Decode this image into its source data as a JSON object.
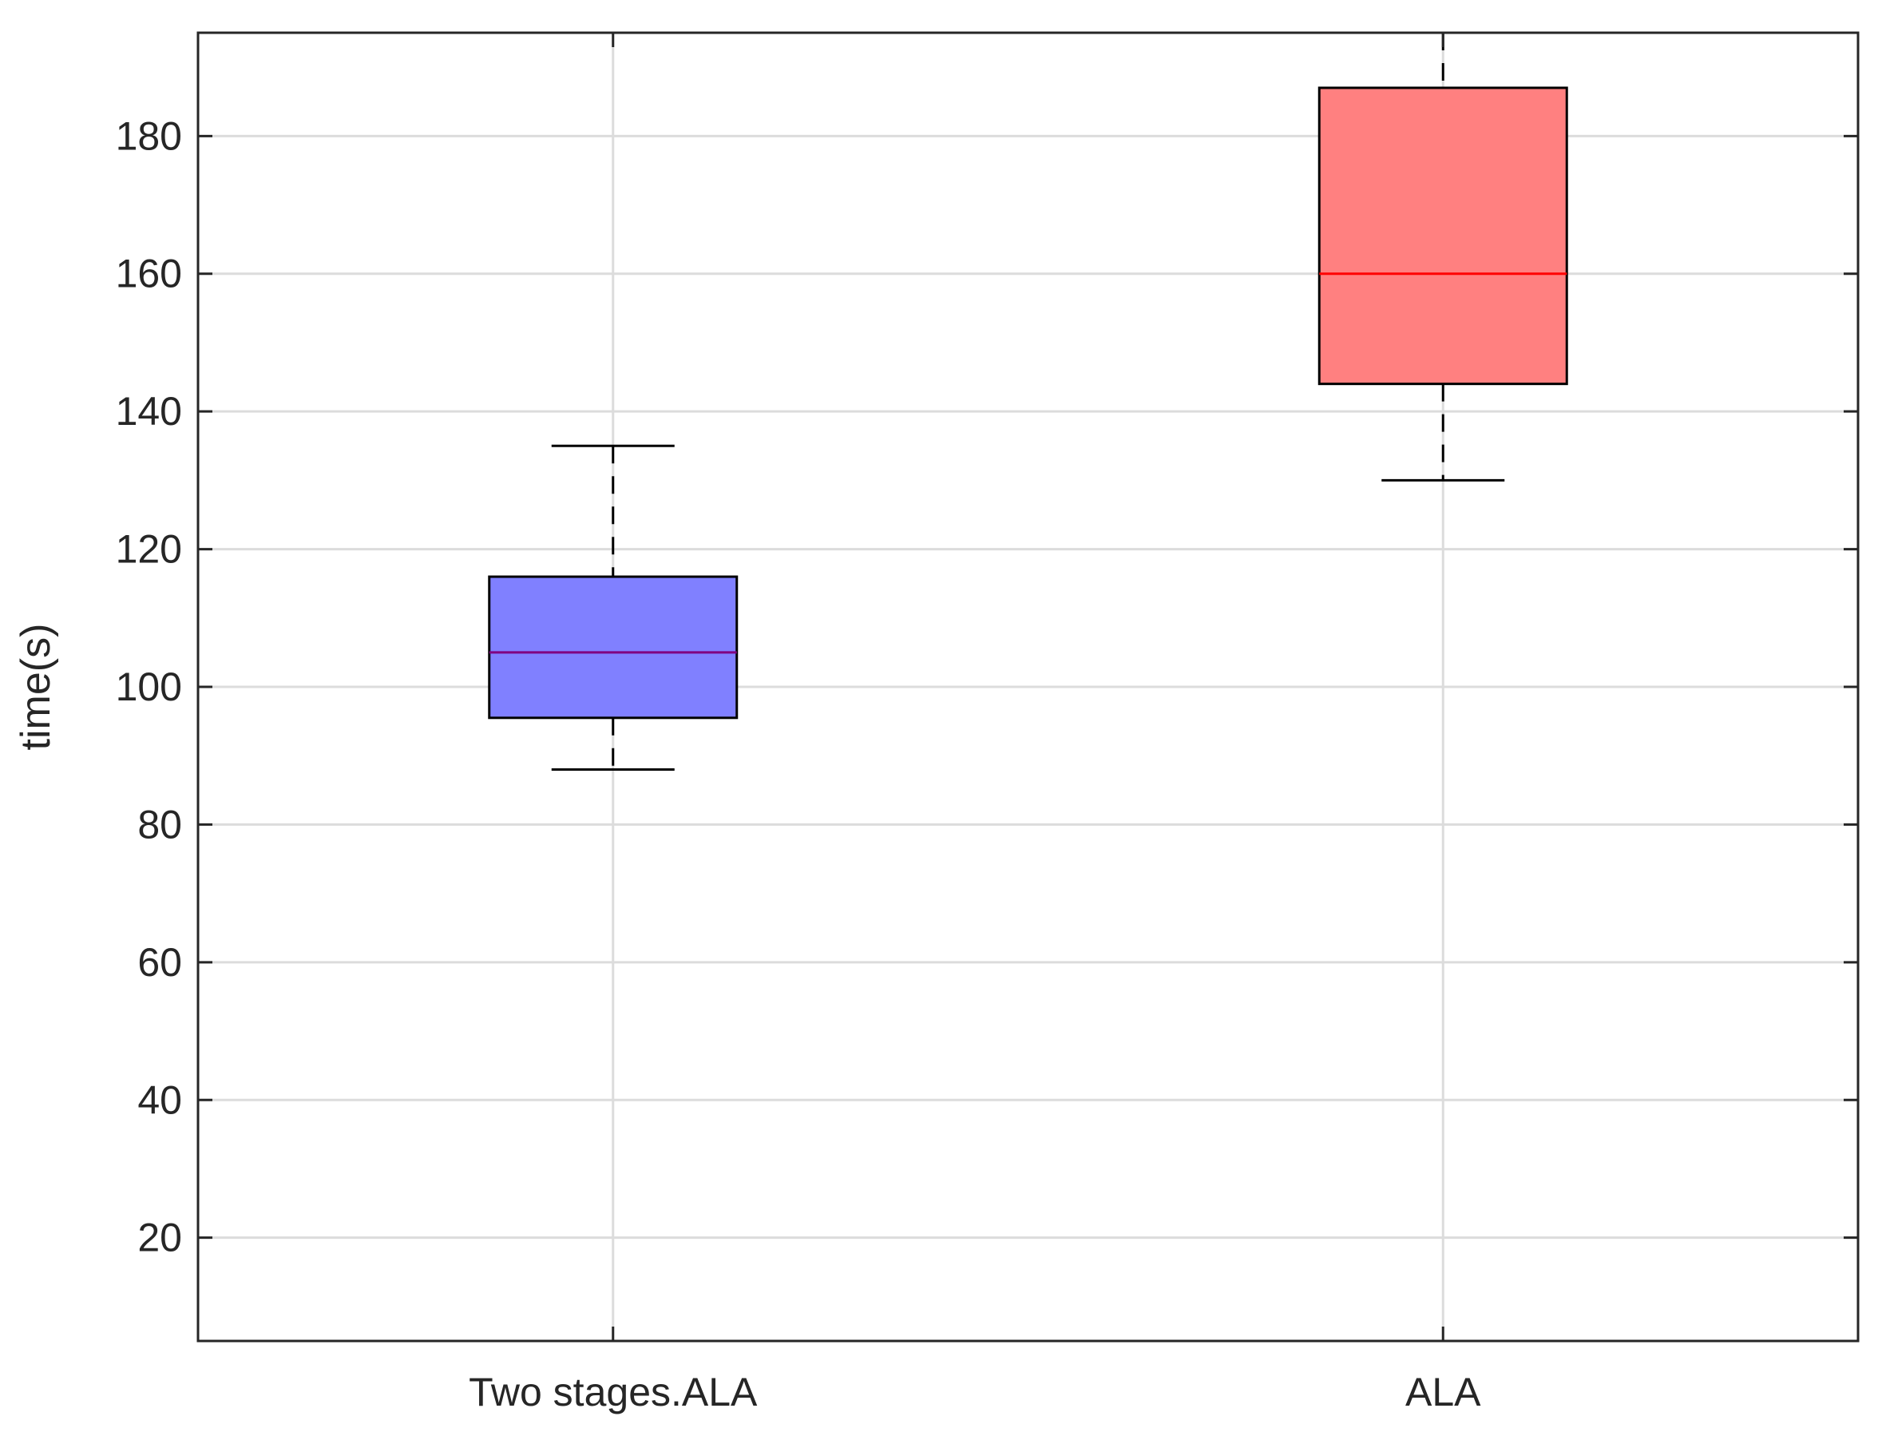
{
  "chart_data": {
    "type": "box",
    "title": "",
    "xlabel": "",
    "ylabel": "time(s)",
    "ylim": [
      5,
      195
    ],
    "yticks": [
      20,
      40,
      60,
      80,
      100,
      120,
      140,
      160,
      180
    ],
    "grid": true,
    "categories": [
      "Two stages.ALA",
      "ALA"
    ],
    "boxes": [
      {
        "name": "Two stages.ALA",
        "whisker_low": 88,
        "q1": 95.5,
        "median": 105,
        "q3": 116,
        "whisker_high": 135,
        "fill_color": "#8080ff",
        "median_color": "#800080"
      },
      {
        "name": "ALA",
        "whisker_low": 130,
        "q1": 144,
        "median": 160,
        "q3": 187,
        "whisker_high": 195,
        "fill_color": "#ff8080",
        "median_color": "#ff0000"
      }
    ]
  }
}
